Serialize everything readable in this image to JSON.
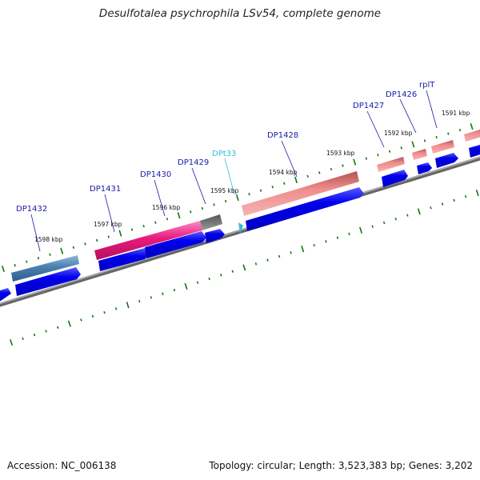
{
  "title": "Desulfotalea psychrophila LSv54, complete genome",
  "footer": {
    "accession": "Accession: NC_006138",
    "summary": "Topology: circular; Length: 3,523,383 bp; Genes: 3,202"
  },
  "colors": {
    "backbone": "#888888",
    "reverse_strand_gene": "#0000ee",
    "tick": "#117711",
    "label_line": "#1a1aa6",
    "trna": "#33bfd9"
  },
  "kbp_labels": [
    "1598 kbp",
    "1597 kbp",
    "1596 kbp",
    "1595 kbp",
    "1594 kbp",
    "1593 kbp",
    "1592 kbp",
    "1591 kbp"
  ],
  "genes": [
    {
      "label": "DP1432",
      "color": "#4a7fb0"
    },
    {
      "label": "DP1431",
      "color": "#e8197d"
    },
    {
      "label": "DP1430",
      "color": "#0000ee"
    },
    {
      "label": "DP1429",
      "color": "#666666"
    },
    {
      "label": "DPt33",
      "color": "#33bfd9"
    },
    {
      "label": "DP1428",
      "color": "#e07a7a"
    },
    {
      "label": "DP1427",
      "color": "#e07a7a"
    },
    {
      "label": "DP1426",
      "color": "#e07a7a"
    },
    {
      "label": "rplT",
      "color": "#e07a7a"
    }
  ]
}
